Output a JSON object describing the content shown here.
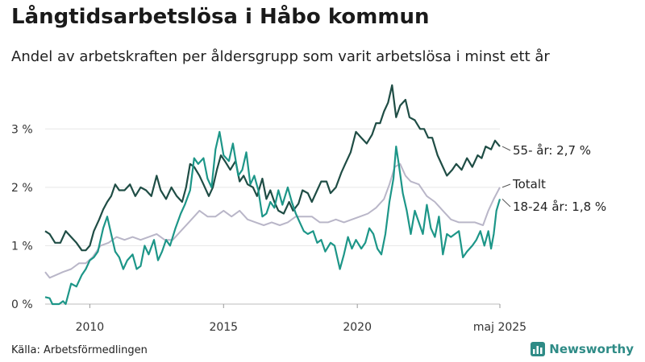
{
  "header": {
    "title": "Långtidsarbetslösa i Håbo kommun",
    "subtitle": "Andel av arbetskraften per åldersgrupp som varit arbetslösa i minst ett år"
  },
  "footer": {
    "source": "Källa: Arbetsförmedlingen",
    "brand": "Newsworthy",
    "brand_icon": "newsworthy-logo-icon"
  },
  "chart_data": {
    "type": "line",
    "xlabel": "",
    "ylabel": "",
    "x_ticks": [
      "2010",
      "2015",
      "2020",
      "maj 2025"
    ],
    "x_tick_values": [
      2010,
      2015,
      2020,
      2025.33
    ],
    "y_ticks": [
      "0 %",
      "1 %",
      "2 %",
      "3 %"
    ],
    "y_tick_values": [
      0,
      1,
      2,
      3
    ],
    "xlim": [
      2008.33,
      2025.33
    ],
    "ylim": [
      0,
      3.9
    ],
    "grid": "horizontal",
    "legend": "direct labels at right end of lines",
    "series": [
      {
        "name": "55- år",
        "end_label": "55- år: 2,7 %",
        "color": "#1f4d45",
        "points": [
          [
            2008.33,
            1.25
          ],
          [
            2008.5,
            1.2
          ],
          [
            2008.7,
            1.05
          ],
          [
            2008.9,
            1.05
          ],
          [
            2009.1,
            1.25
          ],
          [
            2009.3,
            1.15
          ],
          [
            2009.5,
            1.05
          ],
          [
            2009.7,
            0.92
          ],
          [
            2009.85,
            0.92
          ],
          [
            2010.0,
            1.0
          ],
          [
            2010.15,
            1.25
          ],
          [
            2010.35,
            1.45
          ],
          [
            2010.5,
            1.62
          ],
          [
            2010.65,
            1.75
          ],
          [
            2010.8,
            1.85
          ],
          [
            2010.95,
            2.05
          ],
          [
            2011.1,
            1.95
          ],
          [
            2011.3,
            1.95
          ],
          [
            2011.5,
            2.05
          ],
          [
            2011.7,
            1.85
          ],
          [
            2011.9,
            2.0
          ],
          [
            2012.1,
            1.95
          ],
          [
            2012.3,
            1.85
          ],
          [
            2012.5,
            2.2
          ],
          [
            2012.65,
            1.95
          ],
          [
            2012.85,
            1.8
          ],
          [
            2013.05,
            2.0
          ],
          [
            2013.25,
            1.85
          ],
          [
            2013.45,
            1.75
          ],
          [
            2013.6,
            2.0
          ],
          [
            2013.75,
            2.4
          ],
          [
            2013.9,
            2.35
          ],
          [
            2014.1,
            2.2
          ],
          [
            2014.25,
            2.05
          ],
          [
            2014.45,
            1.85
          ],
          [
            2014.6,
            2.0
          ],
          [
            2014.75,
            2.3
          ],
          [
            2014.9,
            2.55
          ],
          [
            2015.05,
            2.45
          ],
          [
            2015.25,
            2.3
          ],
          [
            2015.45,
            2.45
          ],
          [
            2015.6,
            2.1
          ],
          [
            2015.75,
            2.2
          ],
          [
            2015.9,
            2.05
          ],
          [
            2016.1,
            2.0
          ],
          [
            2016.25,
            1.85
          ],
          [
            2016.45,
            2.15
          ],
          [
            2016.6,
            1.8
          ],
          [
            2016.75,
            1.95
          ],
          [
            2016.9,
            1.75
          ],
          [
            2017.05,
            1.6
          ],
          [
            2017.25,
            1.55
          ],
          [
            2017.45,
            1.75
          ],
          [
            2017.6,
            1.6
          ],
          [
            2017.8,
            1.72
          ],
          [
            2017.95,
            1.95
          ],
          [
            2018.15,
            1.9
          ],
          [
            2018.3,
            1.75
          ],
          [
            2018.5,
            1.95
          ],
          [
            2018.65,
            2.1
          ],
          [
            2018.85,
            2.1
          ],
          [
            2019.0,
            1.9
          ],
          [
            2019.2,
            2.0
          ],
          [
            2019.4,
            2.25
          ],
          [
            2019.55,
            2.4
          ],
          [
            2019.75,
            2.6
          ],
          [
            2019.95,
            2.95
          ],
          [
            2020.15,
            2.85
          ],
          [
            2020.35,
            2.75
          ],
          [
            2020.55,
            2.9
          ],
          [
            2020.7,
            3.1
          ],
          [
            2020.85,
            3.1
          ],
          [
            2021.0,
            3.3
          ],
          [
            2021.15,
            3.45
          ],
          [
            2021.3,
            3.75
          ],
          [
            2021.45,
            3.2
          ],
          [
            2021.6,
            3.4
          ],
          [
            2021.8,
            3.5
          ],
          [
            2021.95,
            3.2
          ],
          [
            2022.15,
            3.15
          ],
          [
            2022.35,
            3.0
          ],
          [
            2022.5,
            3.0
          ],
          [
            2022.65,
            2.85
          ],
          [
            2022.8,
            2.85
          ],
          [
            2023.0,
            2.55
          ],
          [
            2023.2,
            2.35
          ],
          [
            2023.35,
            2.2
          ],
          [
            2023.55,
            2.3
          ],
          [
            2023.7,
            2.4
          ],
          [
            2023.9,
            2.3
          ],
          [
            2024.1,
            2.5
          ],
          [
            2024.3,
            2.35
          ],
          [
            2024.5,
            2.55
          ],
          [
            2024.65,
            2.5
          ],
          [
            2024.8,
            2.7
          ],
          [
            2025.0,
            2.65
          ],
          [
            2025.15,
            2.8
          ],
          [
            2025.33,
            2.7
          ]
        ]
      },
      {
        "name": "Totalt",
        "end_label": "Totalt",
        "color": "#b9b6c8",
        "points": [
          [
            2008.33,
            0.55
          ],
          [
            2008.5,
            0.45
          ],
          [
            2008.75,
            0.5
          ],
          [
            2009.0,
            0.55
          ],
          [
            2009.3,
            0.6
          ],
          [
            2009.6,
            0.7
          ],
          [
            2009.85,
            0.7
          ],
          [
            2010.1,
            0.8
          ],
          [
            2010.4,
            1.0
          ],
          [
            2010.7,
            1.05
          ],
          [
            2011.0,
            1.15
          ],
          [
            2011.3,
            1.1
          ],
          [
            2011.6,
            1.15
          ],
          [
            2011.9,
            1.1
          ],
          [
            2012.2,
            1.15
          ],
          [
            2012.5,
            1.2
          ],
          [
            2012.8,
            1.1
          ],
          [
            2013.1,
            1.1
          ],
          [
            2013.4,
            1.25
          ],
          [
            2013.7,
            1.4
          ],
          [
            2013.9,
            1.5
          ],
          [
            2014.1,
            1.6
          ],
          [
            2014.4,
            1.5
          ],
          [
            2014.7,
            1.5
          ],
          [
            2015.0,
            1.6
          ],
          [
            2015.3,
            1.5
          ],
          [
            2015.6,
            1.6
          ],
          [
            2015.9,
            1.45
          ],
          [
            2016.2,
            1.4
          ],
          [
            2016.5,
            1.35
          ],
          [
            2016.8,
            1.4
          ],
          [
            2017.1,
            1.35
          ],
          [
            2017.4,
            1.4
          ],
          [
            2017.7,
            1.5
          ],
          [
            2018.0,
            1.5
          ],
          [
            2018.3,
            1.5
          ],
          [
            2018.6,
            1.4
          ],
          [
            2018.9,
            1.4
          ],
          [
            2019.2,
            1.45
          ],
          [
            2019.5,
            1.4
          ],
          [
            2019.8,
            1.45
          ],
          [
            2020.1,
            1.5
          ],
          [
            2020.4,
            1.55
          ],
          [
            2020.7,
            1.65
          ],
          [
            2021.0,
            1.8
          ],
          [
            2021.2,
            2.05
          ],
          [
            2021.4,
            2.35
          ],
          [
            2021.6,
            2.4
          ],
          [
            2021.8,
            2.2
          ],
          [
            2022.0,
            2.1
          ],
          [
            2022.3,
            2.05
          ],
          [
            2022.6,
            1.85
          ],
          [
            2022.9,
            1.75
          ],
          [
            2023.2,
            1.6
          ],
          [
            2023.5,
            1.45
          ],
          [
            2023.8,
            1.4
          ],
          [
            2024.1,
            1.4
          ],
          [
            2024.4,
            1.4
          ],
          [
            2024.7,
            1.35
          ],
          [
            2024.9,
            1.6
          ],
          [
            2025.1,
            1.8
          ],
          [
            2025.33,
            2.0
          ]
        ]
      },
      {
        "name": "18-24 år",
        "end_label": "18-24 år: 1,8 %",
        "color": "#1d9688",
        "points": [
          [
            2008.33,
            0.12
          ],
          [
            2008.5,
            0.1
          ],
          [
            2008.6,
            0.0
          ],
          [
            2008.85,
            0.0
          ],
          [
            2009.0,
            0.05
          ],
          [
            2009.1,
            0.0
          ],
          [
            2009.3,
            0.35
          ],
          [
            2009.5,
            0.3
          ],
          [
            2009.7,
            0.5
          ],
          [
            2009.85,
            0.6
          ],
          [
            2010.0,
            0.75
          ],
          [
            2010.15,
            0.8
          ],
          [
            2010.3,
            0.9
          ],
          [
            2010.5,
            1.3
          ],
          [
            2010.65,
            1.5
          ],
          [
            2010.8,
            1.2
          ],
          [
            2010.95,
            0.9
          ],
          [
            2011.1,
            0.8
          ],
          [
            2011.25,
            0.6
          ],
          [
            2011.4,
            0.75
          ],
          [
            2011.6,
            0.85
          ],
          [
            2011.75,
            0.6
          ],
          [
            2011.9,
            0.65
          ],
          [
            2012.05,
            1.0
          ],
          [
            2012.2,
            0.85
          ],
          [
            2012.4,
            1.1
          ],
          [
            2012.55,
            0.75
          ],
          [
            2012.7,
            0.9
          ],
          [
            2012.85,
            1.1
          ],
          [
            2013.0,
            1.0
          ],
          [
            2013.2,
            1.3
          ],
          [
            2013.4,
            1.55
          ],
          [
            2013.55,
            1.7
          ],
          [
            2013.75,
            1.95
          ],
          [
            2013.9,
            2.5
          ],
          [
            2014.05,
            2.4
          ],
          [
            2014.25,
            2.5
          ],
          [
            2014.4,
            2.15
          ],
          [
            2014.55,
            2.0
          ],
          [
            2014.7,
            2.65
          ],
          [
            2014.85,
            2.95
          ],
          [
            2015.0,
            2.55
          ],
          [
            2015.2,
            2.45
          ],
          [
            2015.35,
            2.75
          ],
          [
            2015.55,
            2.2
          ],
          [
            2015.7,
            2.3
          ],
          [
            2015.85,
            2.6
          ],
          [
            2016.0,
            2.05
          ],
          [
            2016.15,
            2.2
          ],
          [
            2016.3,
            1.95
          ],
          [
            2016.45,
            1.5
          ],
          [
            2016.6,
            1.55
          ],
          [
            2016.75,
            1.75
          ],
          [
            2016.9,
            1.65
          ],
          [
            2017.05,
            1.95
          ],
          [
            2017.2,
            1.7
          ],
          [
            2017.4,
            2.0
          ],
          [
            2017.55,
            1.75
          ],
          [
            2017.7,
            1.55
          ],
          [
            2017.85,
            1.4
          ],
          [
            2018.0,
            1.25
          ],
          [
            2018.15,
            1.2
          ],
          [
            2018.35,
            1.25
          ],
          [
            2018.5,
            1.05
          ],
          [
            2018.65,
            1.1
          ],
          [
            2018.8,
            0.9
          ],
          [
            2019.0,
            1.05
          ],
          [
            2019.15,
            1.0
          ],
          [
            2019.35,
            0.6
          ],
          [
            2019.5,
            0.85
          ],
          [
            2019.65,
            1.15
          ],
          [
            2019.8,
            0.95
          ],
          [
            2019.95,
            1.1
          ],
          [
            2020.15,
            0.95
          ],
          [
            2020.3,
            1.05
          ],
          [
            2020.45,
            1.3
          ],
          [
            2020.6,
            1.2
          ],
          [
            2020.75,
            0.95
          ],
          [
            2020.9,
            0.85
          ],
          [
            2021.05,
            1.2
          ],
          [
            2021.2,
            1.75
          ],
          [
            2021.35,
            2.15
          ],
          [
            2021.45,
            2.7
          ],
          [
            2021.55,
            2.4
          ],
          [
            2021.7,
            1.9
          ],
          [
            2021.85,
            1.6
          ],
          [
            2022.0,
            1.2
          ],
          [
            2022.15,
            1.6
          ],
          [
            2022.3,
            1.4
          ],
          [
            2022.45,
            1.2
          ],
          [
            2022.6,
            1.7
          ],
          [
            2022.75,
            1.3
          ],
          [
            2022.9,
            1.15
          ],
          [
            2023.05,
            1.5
          ],
          [
            2023.2,
            0.85
          ],
          [
            2023.35,
            1.2
          ],
          [
            2023.5,
            1.15
          ],
          [
            2023.65,
            1.2
          ],
          [
            2023.8,
            1.25
          ],
          [
            2023.95,
            0.8
          ],
          [
            2024.1,
            0.9
          ],
          [
            2024.3,
            1.0
          ],
          [
            2024.45,
            1.1
          ],
          [
            2024.6,
            1.25
          ],
          [
            2024.75,
            1.0
          ],
          [
            2024.9,
            1.25
          ],
          [
            2025.0,
            0.95
          ],
          [
            2025.1,
            1.2
          ],
          [
            2025.2,
            1.6
          ],
          [
            2025.33,
            1.8
          ]
        ]
      }
    ]
  }
}
